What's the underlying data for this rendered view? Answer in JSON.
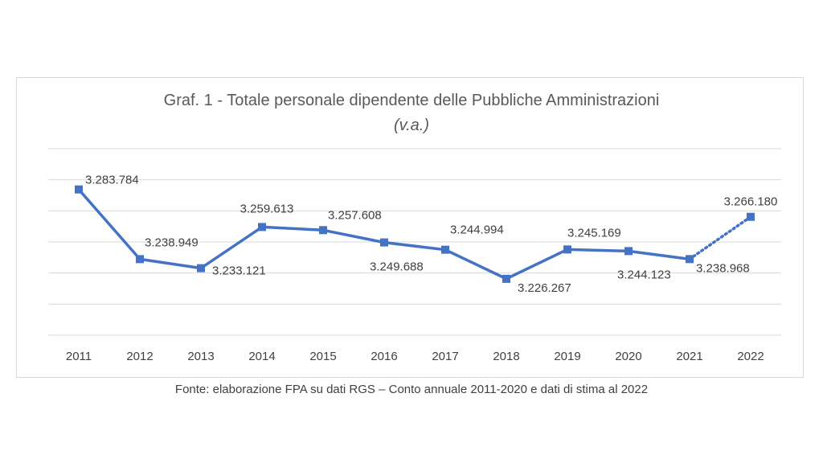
{
  "chart_data": {
    "type": "line",
    "title": "Graf. 1 - Totale personale dipendente delle Pubbliche Amministrazioni",
    "subtitle": "(v.a.)",
    "xlabel": "",
    "ylabel": "",
    "categories": [
      "2011",
      "2012",
      "2013",
      "2014",
      "2015",
      "2016",
      "2017",
      "2018",
      "2019",
      "2020",
      "2021",
      "2022"
    ],
    "series": [
      {
        "values": [
          3283784,
          3238949,
          3233121,
          3259613,
          3257608,
          3249688,
          3244994,
          3226267,
          3245169,
          3244123,
          3238968,
          3266180
        ],
        "data_labels": [
          "3.283.784",
          "3.238.949",
          "3.233.121",
          "3.259.613",
          "3.257.608",
          "3.249.688",
          "3.244.994",
          "3.226.267",
          "3.245.169",
          "3.244.123",
          "3.238.968",
          "3.266.180"
        ],
        "estimated_from_index": 10,
        "color": "#4472c4"
      }
    ],
    "grid": true,
    "legend": "none"
  },
  "source_note": "Fonte: elaborazione FPA su dati RGS – Conto annuale 2011-2020 e dati di stima al 2022"
}
